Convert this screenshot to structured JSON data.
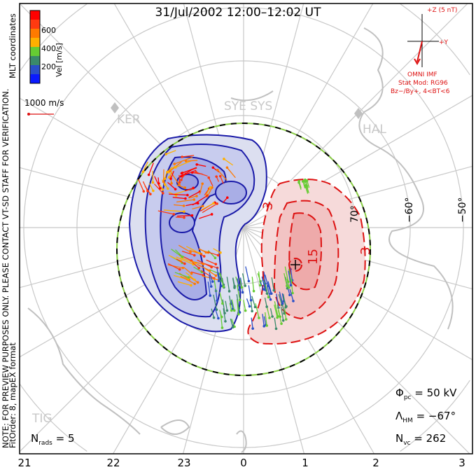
{
  "title": "31/Jul/2002 12:00–12:02 UT",
  "colorbar": {
    "label": "Vel [m/s]",
    "ticks": [
      "600",
      "400",
      "200"
    ],
    "colors": [
      "#ff0000",
      "#ff3a10",
      "#ff7a00",
      "#ffb000",
      "#66cc33",
      "#3a8a6a",
      "#2a4fc8",
      "#0a1aff"
    ]
  },
  "scale_vector_label": "1000 m/s",
  "side_note_line1": "NOTE: FOR PREVIEW PURPOSES ONLY. PLEASE CONTACT VT-SD STAFF FOR VERIFICATION.",
  "side_note_line2": "FitOrder: 8, mapEX format",
  "coords_label": "MLT coordinates",
  "imf": {
    "z_label": "+Z (5 nT)",
    "y_label": "+Y",
    "source": "OMNI IMF",
    "model": "Stat Mod: RG96",
    "condition": "Bz−/By+, 4<BT<6"
  },
  "stations": [
    "KER",
    "SYE SYS",
    "HAL",
    "TIG"
  ],
  "lat_labels": [
    "70°",
    "−60°",
    "−50°"
  ],
  "contour_labels": [
    "3",
    "15",
    "3"
  ],
  "stats": {
    "phi_pc_sym": "Φ",
    "phi_pc_sub": "pc",
    "phi_pc_value": "= 50 kV",
    "lambda_hm_sym": "Λ",
    "lambda_hm_sub": "HM",
    "lambda_hm_value": "= −67°",
    "n_vc_sym": "N",
    "n_vc_sub": "vc",
    "n_vc_value": "= 262",
    "n_rads_sym": "N",
    "n_rads_sub": "rads",
    "n_rads_value": "= 5"
  },
  "mlt_ticks": [
    "21",
    "22",
    "23",
    "0",
    "1",
    "2",
    "3"
  ],
  "colors": {
    "positive": "#dd1111",
    "negative": "#1a1aa8",
    "grid": "#c8c8c8",
    "text_red": "#dd1111"
  }
}
